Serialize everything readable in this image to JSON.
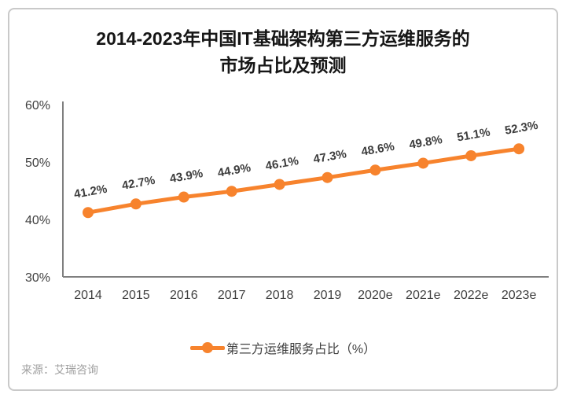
{
  "card": {
    "title_line1": "2014-2023年中国IT基础架构第三方运维服务的",
    "title_line2": "市场占比及预测",
    "source": "来源：艾瑞咨询"
  },
  "chart_data": {
    "type": "line",
    "title": "2014-2023年中国IT基础架构第三方运维服务的市场占比及预测",
    "categories": [
      "2014",
      "2015",
      "2016",
      "2017",
      "2018",
      "2019",
      "2020e",
      "2021e",
      "2022e",
      "2023e"
    ],
    "series": [
      {
        "name": "第三方运维服务占比（%）",
        "values": [
          41.2,
          42.7,
          43.9,
          44.9,
          46.1,
          47.3,
          48.6,
          49.8,
          51.1,
          52.3
        ]
      }
    ],
    "data_labels": [
      "41.2%",
      "42.7%",
      "43.9%",
      "44.9%",
      "46.1%",
      "47.3%",
      "48.6%",
      "49.8%",
      "51.1%",
      "52.3%"
    ],
    "xlabel": "",
    "ylabel": "",
    "ylim": [
      30,
      60
    ],
    "yticks": [
      30,
      40,
      50,
      60
    ],
    "ytick_labels": [
      "30%",
      "40%",
      "50%",
      "60%"
    ],
    "grid": false,
    "legend_position": "bottom",
    "colors": {
      "line": "#F7832D",
      "marker": "#F7832D",
      "axis": "#7f7f7f",
      "axis_text": "#404040",
      "data_label_text": "#3d3d3d"
    }
  }
}
